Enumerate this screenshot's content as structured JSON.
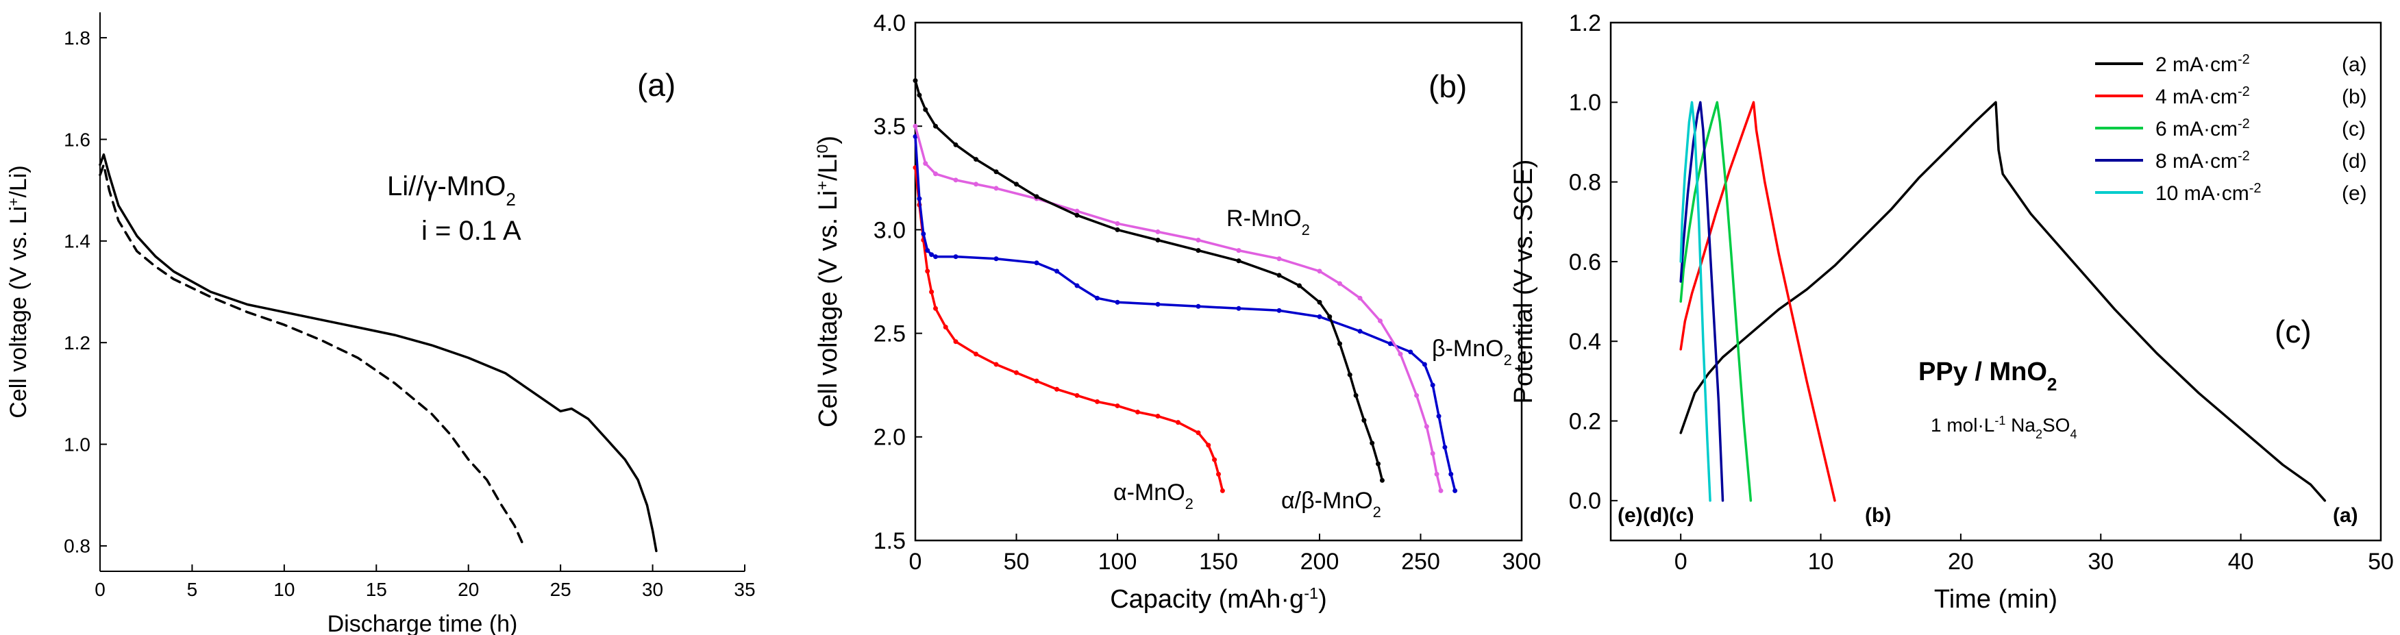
{
  "chart_data": [
    {
      "type": "line",
      "panel_label": "(a)",
      "xlabel": "Discharge time (h)",
      "ylabel": "Cell voltage (V vs. Li",
      "ylabel_sup": "+",
      "ylabel_tail": "/Li)",
      "xlim": [
        0,
        35
      ],
      "ylim": [
        0.75,
        1.85
      ],
      "xticks": [
        0,
        5,
        10,
        15,
        20,
        25,
        30,
        35
      ],
      "yticks": [
        0.8,
        1.0,
        1.2,
        1.4,
        1.6,
        1.8
      ],
      "xtick_labels": [
        "0",
        "5",
        "10",
        "15",
        "20",
        "25",
        "30",
        "35"
      ],
      "ytick_labels": [
        "0.8",
        "1.0",
        "1.2",
        "1.4",
        "1.6",
        "1.8"
      ],
      "annotation_line1_pre": "Li//",
      "annotation_line1_greek": "γ",
      "annotation_line1_post": "-MnO",
      "annotation_line1_sub": "2",
      "annotation_line2": "i = 0.1 A",
      "series": [
        {
          "name": "solid",
          "color": "#000000",
          "dash": "none",
          "x": [
            0,
            0.2,
            0.5,
            1,
            2,
            3,
            4,
            6,
            8,
            10,
            12,
            14,
            16,
            18,
            20,
            22,
            24,
            25,
            25.6,
            26.5,
            27.5,
            28.5,
            29.2,
            29.7,
            30.0,
            30.2
          ],
          "y": [
            1.55,
            1.57,
            1.53,
            1.47,
            1.41,
            1.37,
            1.34,
            1.3,
            1.275,
            1.26,
            1.245,
            1.23,
            1.215,
            1.195,
            1.17,
            1.14,
            1.09,
            1.065,
            1.07,
            1.05,
            1.01,
            0.97,
            0.93,
            0.88,
            0.83,
            0.79
          ]
        },
        {
          "name": "dashed",
          "color": "#000000",
          "dash": "14,10",
          "x": [
            0,
            0.2,
            0.5,
            1,
            2,
            3,
            4,
            6,
            8,
            10,
            12,
            14,
            16,
            17,
            18,
            19,
            20,
            21,
            21.8,
            22.5,
            23.0
          ],
          "y": [
            1.53,
            1.55,
            1.5,
            1.44,
            1.38,
            1.35,
            1.325,
            1.29,
            1.26,
            1.235,
            1.205,
            1.17,
            1.12,
            1.09,
            1.06,
            1.02,
            0.97,
            0.93,
            0.88,
            0.84,
            0.8
          ]
        }
      ]
    },
    {
      "type": "line",
      "panel_label": "(b)",
      "xlabel": "Capacity (mAh·g",
      "xlabel_sup": "-1",
      "xlabel_tail": ")",
      "ylabel": "Cell voltage (V vs. Li",
      "ylabel_sup": "+",
      "ylabel_mid": "/Li",
      "ylabel_sup2": "0",
      "ylabel_tail": ")",
      "xlim": [
        0,
        300
      ],
      "ylim": [
        1.5,
        4.0
      ],
      "xticks": [
        0,
        50,
        100,
        150,
        200,
        250,
        300
      ],
      "yticks": [
        1.5,
        2.0,
        2.5,
        3.0,
        3.5,
        4.0
      ],
      "xtick_labels": [
        "0",
        "50",
        "100",
        "150",
        "200",
        "250",
        "300"
      ],
      "ytick_labels": [
        "1.5",
        "2.0",
        "2.5",
        "3.0",
        "3.5",
        "4.0"
      ],
      "series": [
        {
          "name": "α-MnO₂",
          "label_pre": "α",
          "label_post": "-MnO",
          "label_sub": "2",
          "color": "#ff0000",
          "x": [
            0,
            2,
            4,
            6,
            8,
            10,
            15,
            20,
            30,
            40,
            50,
            60,
            70,
            80,
            90,
            100,
            110,
            120,
            130,
            140,
            145,
            148,
            150,
            152
          ],
          "y": [
            3.3,
            3.12,
            2.95,
            2.8,
            2.7,
            2.62,
            2.53,
            2.46,
            2.4,
            2.35,
            2.31,
            2.27,
            2.23,
            2.2,
            2.17,
            2.15,
            2.12,
            2.1,
            2.07,
            2.02,
            1.96,
            1.89,
            1.82,
            1.74
          ]
        },
        {
          "name": "β-MnO₂",
          "label_pre": "β",
          "label_post": "-MnO",
          "label_sub": "2",
          "color": "#0000cc",
          "x": [
            0,
            2,
            4,
            6,
            8,
            10,
            20,
            40,
            60,
            70,
            80,
            90,
            100,
            120,
            140,
            160,
            180,
            200,
            220,
            235,
            245,
            252,
            256,
            259,
            262,
            265,
            267
          ],
          "y": [
            3.45,
            3.15,
            2.98,
            2.9,
            2.88,
            2.87,
            2.87,
            2.86,
            2.84,
            2.8,
            2.73,
            2.67,
            2.65,
            2.64,
            2.63,
            2.62,
            2.61,
            2.58,
            2.51,
            2.45,
            2.41,
            2.35,
            2.25,
            2.1,
            1.95,
            1.82,
            1.74
          ]
        },
        {
          "name": "R-MnO₂",
          "label_pre": "R",
          "label_post": "-MnO",
          "label_sub": "2",
          "color": "#e060e0",
          "x": [
            0,
            5,
            10,
            20,
            30,
            40,
            60,
            80,
            100,
            120,
            140,
            160,
            180,
            200,
            210,
            220,
            230,
            240,
            248,
            253,
            256,
            258,
            260
          ],
          "y": [
            3.5,
            3.32,
            3.27,
            3.24,
            3.22,
            3.2,
            3.15,
            3.09,
            3.03,
            2.99,
            2.95,
            2.9,
            2.86,
            2.8,
            2.74,
            2.67,
            2.56,
            2.4,
            2.2,
            2.05,
            1.92,
            1.82,
            1.74
          ]
        },
        {
          "name": "α/β-MnO₂",
          "label_pre": "α/β",
          "label_post": "-MnO",
          "label_sub": "2",
          "color": "#000000",
          "x": [
            0,
            2,
            5,
            10,
            20,
            30,
            40,
            50,
            60,
            80,
            100,
            120,
            140,
            160,
            180,
            190,
            200,
            205,
            210,
            215,
            218,
            222,
            226,
            229,
            231
          ],
          "y": [
            3.72,
            3.65,
            3.58,
            3.5,
            3.41,
            3.34,
            3.28,
            3.22,
            3.16,
            3.07,
            3.0,
            2.95,
            2.9,
            2.85,
            2.78,
            2.73,
            2.65,
            2.58,
            2.45,
            2.3,
            2.2,
            2.08,
            1.97,
            1.87,
            1.79
          ]
        }
      ]
    },
    {
      "type": "line",
      "panel_label": "(c)",
      "xlabel": "Time (min)",
      "ylabel": "Potential (V vs. SCE)",
      "xlim": [
        -5,
        50
      ],
      "ylim": [
        -0.1,
        1.2
      ],
      "xticks": [
        0,
        10,
        20,
        30,
        40,
        50
      ],
      "yticks": [
        0.0,
        0.2,
        0.4,
        0.6,
        0.8,
        1.0,
        1.2
      ],
      "xtick_labels": [
        "0",
        "10",
        "20",
        "30",
        "40",
        "50"
      ],
      "ytick_labels": [
        "0.0",
        "0.2",
        "0.4",
        "0.6",
        "0.8",
        "1.0",
        "1.2"
      ],
      "annotation_title": "PPy / MnO",
      "annotation_title_sub": "2",
      "annotation_conc_pre": "1 mol·L",
      "annotation_conc_sup": "-1",
      "annotation_conc_mid": " Na",
      "annotation_conc_sub1": "2",
      "annotation_conc_mid2": "SO",
      "annotation_conc_sub2": "4",
      "curve_end_labels": [
        "(e)",
        "(d)",
        "(c)",
        "(b)",
        "(a)"
      ],
      "series": [
        {
          "name": "2 mA·cm-2",
          "legend_pre": "2 mA·cm",
          "legend_sup": "-2",
          "tag": "(a)",
          "color": "#000000",
          "x": [
            0,
            1,
            2,
            3,
            5,
            7,
            9,
            11,
            13,
            15,
            17,
            19,
            21,
            22.5,
            22.7,
            23,
            25,
            28,
            31,
            34,
            37,
            40,
            43,
            45,
            46
          ],
          "y": [
            0.17,
            0.27,
            0.32,
            0.36,
            0.42,
            0.48,
            0.53,
            0.59,
            0.66,
            0.73,
            0.81,
            0.88,
            0.95,
            1.0,
            0.88,
            0.82,
            0.72,
            0.6,
            0.48,
            0.37,
            0.27,
            0.18,
            0.09,
            0.04,
            0.0
          ]
        },
        {
          "name": "4 mA·cm-2",
          "legend_pre": "4 mA·cm",
          "legend_sup": "-2",
          "tag": "(b)",
          "color": "#ff0000",
          "x": [
            0,
            0.3,
            0.8,
            1.5,
            2.5,
            3.5,
            4.5,
            5.2,
            5.4,
            6,
            7,
            8,
            9,
            10,
            11
          ],
          "y": [
            0.38,
            0.45,
            0.52,
            0.6,
            0.72,
            0.83,
            0.93,
            1.0,
            0.93,
            0.8,
            0.62,
            0.46,
            0.3,
            0.15,
            0.0
          ]
        },
        {
          "name": "6 mA·cm-2",
          "legend_pre": "6 mA·cm",
          "legend_sup": "-2",
          "tag": "(c)",
          "color": "#00cc44",
          "x": [
            0.0,
            0.2,
            0.6,
            1.0,
            1.6,
            2.2,
            2.6,
            2.8,
            3.2,
            3.6,
            4.0,
            4.5,
            5.0
          ],
          "y": [
            0.5,
            0.58,
            0.68,
            0.77,
            0.87,
            0.95,
            1.0,
            0.95,
            0.8,
            0.62,
            0.43,
            0.2,
            0.0
          ]
        },
        {
          "name": "8 mA·cm-2",
          "legend_pre": "8 mA·cm",
          "legend_sup": "-2",
          "tag": "(d)",
          "color": "#000099",
          "x": [
            0.0,
            0.2,
            0.5,
            0.9,
            1.2,
            1.4,
            1.6,
            1.9,
            2.3,
            2.7,
            3.0
          ],
          "y": [
            0.55,
            0.65,
            0.77,
            0.9,
            0.97,
            1.0,
            0.93,
            0.75,
            0.5,
            0.25,
            0.0
          ]
        },
        {
          "name": "10 mA·cm-2",
          "legend_pre": "10 mA·cm",
          "legend_sup": "-2",
          "tag": "(e)",
          "color": "#00cccc",
          "x": [
            0.0,
            0.1,
            0.3,
            0.6,
            0.8,
            1.0,
            1.3,
            1.6,
            1.9,
            2.1
          ],
          "y": [
            0.6,
            0.7,
            0.82,
            0.95,
            1.0,
            0.93,
            0.7,
            0.4,
            0.15,
            0.0
          ]
        }
      ]
    }
  ]
}
